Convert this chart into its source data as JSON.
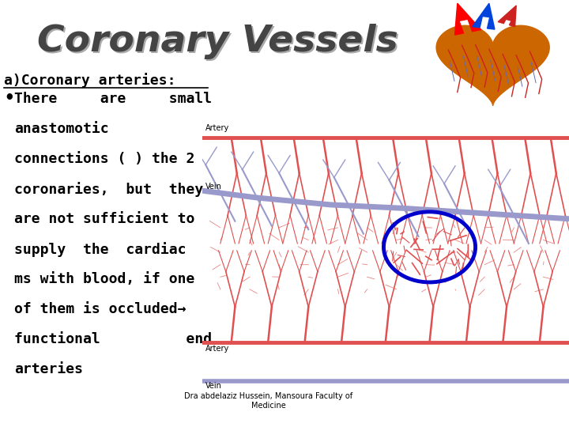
{
  "title": "Coronary Vessels",
  "title_fontsize": 34,
  "title_color": "#555555",
  "background_color": "#ffffff",
  "heading": "a)Coronary arteries:",
  "heading_fontsize": 13,
  "bullet_lines": [
    "There     are     small",
    "anastomotic",
    "connections ( ) the 2",
    "coronaries,  but  they",
    "are not sufficient to",
    "supply  the  cardiac",
    "ms with blood, if one",
    "of them is occluded→",
    "functional          end",
    "arteries"
  ],
  "bullet_fontsize": 13,
  "caption_text": "Dra abdelaziz Hussein, Mansoura Faculty of\nMedicine",
  "caption_fontsize": 7,
  "artery_color": "#E05050",
  "vein_color": "#9999CC",
  "circle_color": "#0000CC",
  "heart_bg": "#000000",
  "heart_color": "#CC6600"
}
